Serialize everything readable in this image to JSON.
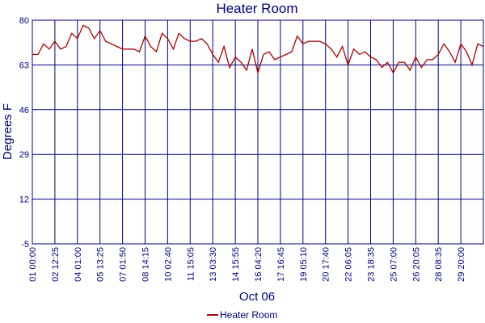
{
  "chart_data": {
    "type": "line",
    "title": "Heater Room",
    "xlabel": "Oct 06",
    "ylabel": "Degrees F",
    "categories": [
      "01 00:00",
      null,
      null,
      null,
      "02 12:25",
      null,
      null,
      null,
      "04 01:00",
      null,
      null,
      null,
      "05 13:25",
      null,
      null,
      null,
      "07 01:50",
      null,
      null,
      null,
      "08 14:15",
      null,
      null,
      null,
      "10 02:40",
      null,
      null,
      null,
      "11 15:05",
      null,
      null,
      null,
      "13 03:30",
      null,
      null,
      null,
      "14 15:55",
      null,
      null,
      null,
      "16 04:20",
      null,
      null,
      null,
      "17 16:45",
      null,
      null,
      null,
      "19 05:10",
      null,
      null,
      null,
      "20 17:40",
      null,
      null,
      null,
      "22 06:05",
      null,
      null,
      null,
      "23 18:35",
      null,
      null,
      null,
      "25 07:00",
      null,
      null,
      null,
      "26 20:05",
      null,
      null,
      null,
      "28 08:35",
      null,
      null,
      null,
      "29 20:00",
      null,
      null,
      null,
      null
    ],
    "series": [
      {
        "name": "Heater Room",
        "color": "#aa0000",
        "values": [
          67,
          67,
          71,
          69,
          72,
          69,
          70,
          75,
          73,
          78,
          77,
          73,
          76,
          72,
          71,
          70,
          69,
          69,
          69,
          68,
          74,
          70,
          68,
          75,
          73,
          69,
          75,
          73,
          72,
          72,
          73,
          71,
          67,
          64,
          70,
          62,
          66,
          64,
          61,
          69,
          60,
          67,
          68,
          65,
          66,
          67,
          68,
          74,
          71,
          72,
          72,
          72,
          71,
          69,
          66,
          70,
          63,
          69,
          67,
          68,
          66,
          65,
          62,
          64,
          60,
          64,
          64,
          61,
          66,
          62,
          65,
          65,
          67,
          71,
          68,
          64,
          71,
          68,
          63,
          71,
          70
        ]
      }
    ],
    "ylim": [
      -5,
      80
    ],
    "yticks": [
      -5,
      12,
      29,
      46,
      63,
      80
    ],
    "grid": true
  }
}
